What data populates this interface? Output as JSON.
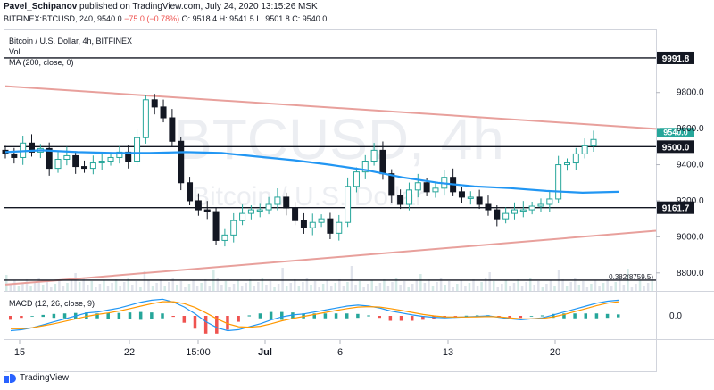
{
  "header": {
    "author": "Pavel_Schipanov",
    "published_text": " published on TradingView.com, July 24, 2020 13:15:26 MSK",
    "symbol_line": "BITFINEX:BTCUSD, 240",
    "last": "9540.0",
    "change": "−75.0 (−0.78%)",
    "ohlc": "O: 9518.4  H: 9541.5  L: 9501.8  C: 9540.0"
  },
  "legend": {
    "title": "Bitcoin / U.S. Dollar, 4h, BITFINEX",
    "vol": "Vol",
    "ma": "MA (200, close, 0)"
  },
  "watermark": {
    "big": "BTCUSD, 4h",
    "small": "Bitcoin / U.S. Dollar"
  },
  "macd_label": "MACD (12, 26, close, 9)",
  "branding": "TradingView",
  "colors": {
    "up": "#26a69a",
    "down": "#131722",
    "ma": "#2196f3",
    "trend": "#e8a09c",
    "macd": "#2196f3",
    "signal": "#ff9800",
    "hist_up": "#26a69a",
    "hist_down": "#ef5350"
  },
  "chart_data": {
    "type": "candlestick",
    "price_axis": {
      "ylim": [
        8700,
        10150
      ],
      "ticks": [
        8800,
        9000,
        9200,
        9400,
        9600,
        9800
      ]
    },
    "time_axis": [
      "15",
      "22",
      "15:00",
      "Jul",
      "6",
      "13",
      "20"
    ],
    "horizontal_levels": [
      {
        "price": 9991.8,
        "label": "9991.8"
      },
      {
        "price": 9500.0,
        "label": "9500.0"
      },
      {
        "price": 9161.7,
        "label": "9161.7"
      },
      {
        "price": 8759.5,
        "label": "0.382(8759.5)"
      }
    ],
    "last_price_tag": "9540.0",
    "fib_label": "0.382(8759.5)",
    "trendlines": [
      {
        "name": "upper",
        "from": {
          "bar": 0,
          "price": 9835
        },
        "to": {
          "bar": 208,
          "price": 9605
        }
      },
      {
        "name": "lower",
        "from": {
          "bar": 0,
          "price": 8735
        },
        "to": {
          "bar": 208,
          "price": 9040
        }
      }
    ],
    "ma200": [
      9470,
      9480,
      9470,
      9465,
      9465,
      9470,
      9465,
      9445,
      9425,
      9400,
      9370,
      9330,
      9300,
      9280,
      9270,
      9255,
      9245,
      9250
    ],
    "candles": [
      9460,
      9440,
      9520,
      9470,
      9490,
      9380,
      9430,
      9450,
      9390,
      9380,
      9410,
      9420,
      9440,
      9470,
      9420,
      9550,
      9760,
      9720,
      9660,
      9530,
      9300,
      9200,
      9150,
      9140,
      8980,
      9010,
      9090,
      9130,
      9150,
      9150,
      9180,
      9220,
      9160,
      9090,
      9050,
      9080,
      9100,
      9020,
      9080,
      9280,
      9360,
      9420,
      9480,
      9350,
      9230,
      9180,
      9260,
      9300,
      9250,
      9270,
      9330,
      9250,
      9220,
      9220,
      9180,
      9150,
      9100,
      9130,
      9150,
      9150,
      9170,
      9180,
      9210,
      9400,
      9410,
      9460,
      9505,
      9540
    ],
    "macd_axis": {
      "ticks": [
        0.0
      ]
    },
    "macd": [
      -150,
      -140,
      -120,
      -90,
      -60,
      -30,
      0,
      30,
      40,
      60,
      80,
      110,
      140,
      160,
      170,
      140,
      90,
      20,
      -60,
      -120,
      -150,
      -140,
      -110,
      -80,
      -40,
      -10,
      10,
      20,
      40,
      60,
      80,
      100,
      110,
      100,
      80,
      50,
      30,
      10,
      -5,
      -15,
      -20,
      -15,
      -10,
      -5,
      0,
      -15,
      -30,
      -40,
      -30,
      -20,
      10,
      40,
      70,
      100,
      130,
      150,
      160
    ],
    "signal": [
      -130,
      -130,
      -120,
      -100,
      -80,
      -55,
      -30,
      -5,
      15,
      30,
      50,
      75,
      100,
      125,
      145,
      145,
      125,
      85,
      30,
      -30,
      -80,
      -110,
      -115,
      -105,
      -80,
      -50,
      -25,
      -5,
      15,
      35,
      55,
      75,
      90,
      95,
      90,
      75,
      55,
      35,
      15,
      0,
      -10,
      -12,
      -12,
      -10,
      -7,
      -10,
      -20,
      -30,
      -30,
      -25,
      -10,
      15,
      45,
      75,
      105,
      130,
      145
    ]
  }
}
